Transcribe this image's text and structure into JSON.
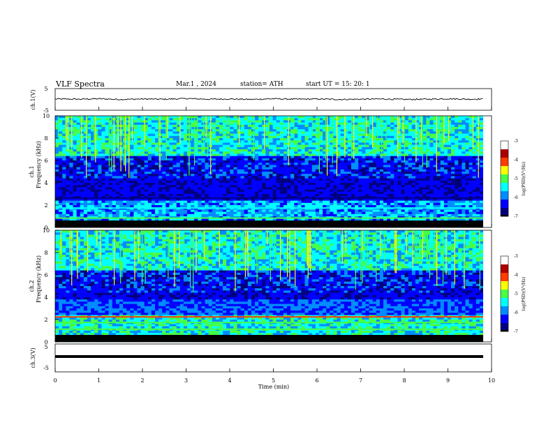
{
  "header": {
    "title": "VLF  Spectra",
    "date": "Mar.1  , 2024",
    "station": "station= ATH",
    "start_ut": "start  UT  =    15: 20: 1"
  },
  "colors": {
    "background": "#ffffff",
    "axis": "#000000",
    "colormap": [
      "#000000",
      "#00007f",
      "#0000ff",
      "#008cff",
      "#00ffff",
      "#46ff46",
      "#ffff00",
      "#ff3c00",
      "#aa0000",
      "#ffffff"
    ]
  },
  "chart_data": [
    {
      "type": "line",
      "name": "ch1-waveform",
      "ylabel": "ch.1(V)",
      "ylim": [
        -5,
        5
      ],
      "yticks": [
        "5",
        "-5"
      ],
      "x": [
        0,
        0.5,
        1,
        1.5,
        2,
        2.5,
        3,
        3.5,
        4,
        4.5,
        5,
        5.5,
        6,
        6.5,
        7,
        7.5,
        8,
        8.5,
        9,
        9.5,
        9.8
      ],
      "values": [
        0.2,
        0.1,
        0.3,
        0.0,
        0.2,
        0.1,
        0.4,
        0.1,
        0.2,
        0.0,
        0.3,
        0.1,
        0.2,
        0.0,
        0.1,
        0.2,
        0.0,
        0.1,
        0.3,
        0.1,
        0.2
      ]
    },
    {
      "type": "heatmap",
      "name": "ch1-spectrogram",
      "ylabel": "ch.1\nFrequency  (kHz)",
      "ylim": [
        0,
        10
      ],
      "yticks": [
        "0",
        "2",
        "4",
        "6",
        "8",
        "10"
      ],
      "colorbar": {
        "label": "log(PSD)(V²/Hz)",
        "range": [
          -7,
          -3
        ],
        "ticks": [
          "-3",
          "-4",
          "-5",
          "-6",
          "-7"
        ]
      }
    },
    {
      "type": "heatmap",
      "name": "ch2-spectrogram",
      "ylabel": "ch.2\nFrequency  (kHz)",
      "ylim": [
        0,
        10
      ],
      "yticks": [
        "0",
        "2",
        "4",
        "6",
        "8",
        "10"
      ],
      "colorbar": {
        "label": "log(PSD)(V²/Hz)",
        "range": [
          -7,
          -3
        ],
        "ticks": [
          "-3",
          "-4",
          "-5",
          "-6",
          "-7"
        ]
      }
    },
    {
      "type": "line",
      "name": "ch3-waveform",
      "ylabel": "ch.3(V)",
      "ylim": [
        -5,
        5
      ],
      "yticks": [
        "5",
        "-5"
      ],
      "x": [
        0,
        9.8
      ],
      "values": [
        0,
        0
      ]
    }
  ],
  "x_axis": {
    "label": "Time  (min)",
    "range": [
      0,
      10
    ],
    "ticks": [
      "0",
      "1",
      "2",
      "3",
      "4",
      "5",
      "6",
      "7",
      "8",
      "9",
      "10"
    ]
  }
}
